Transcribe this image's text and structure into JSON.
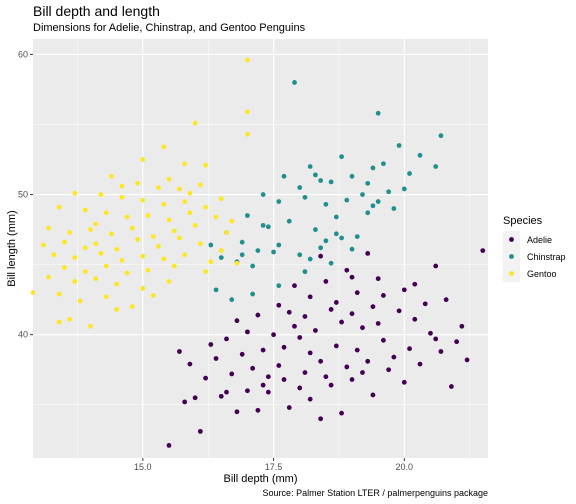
{
  "title": "Bill depth and length",
  "subtitle": "Dimensions for Adelie, Chinstrap, and Gentoo Penguins",
  "caption": "Source: Palmer Station LTER / palmerpenguins package",
  "chart_data": {
    "type": "scatter",
    "title": "Bill depth and length",
    "subtitle": "Dimensions for Adelie, Chinstrap, and Gentoo Penguins",
    "xlabel": "Bill depth (mm)",
    "ylabel": "Bill length (mm)",
    "xlim": [
      12.9,
      21.6
    ],
    "ylim": [
      31.2,
      61.1
    ],
    "x_ticks": [
      15.0,
      17.5,
      20.0
    ],
    "y_ticks": [
      40,
      50,
      60
    ],
    "x_tick_labels": [
      "15.0",
      "17.5",
      "20.0"
    ],
    "y_tick_labels": [
      "40",
      "50",
      "60"
    ],
    "grid": true,
    "legend": {
      "title": "Species",
      "position": "right"
    },
    "series": [
      {
        "name": "Adelie",
        "color": "#440154",
        "points": [
          [
            15.5,
            32.1
          ],
          [
            16.1,
            33.1
          ],
          [
            16.8,
            34.5
          ],
          [
            17.2,
            34.6
          ],
          [
            18.4,
            34.0
          ],
          [
            18.8,
            34.4
          ],
          [
            17.8,
            34.8
          ],
          [
            15.8,
            35.2
          ],
          [
            16.0,
            35.5
          ],
          [
            16.5,
            35.6
          ],
          [
            17.0,
            36.0
          ],
          [
            17.4,
            35.9
          ],
          [
            18.0,
            36.2
          ],
          [
            18.6,
            36.4
          ],
          [
            19.0,
            36.8
          ],
          [
            19.4,
            35.7
          ],
          [
            20.0,
            36.6
          ],
          [
            16.2,
            36.9
          ],
          [
            16.7,
            37.2
          ],
          [
            17.1,
            37.6
          ],
          [
            17.6,
            37.8
          ],
          [
            18.1,
            37.3
          ],
          [
            18.5,
            37.0
          ],
          [
            18.9,
            37.7
          ],
          [
            19.3,
            38.1
          ],
          [
            19.7,
            37.5
          ],
          [
            20.3,
            37.9
          ],
          [
            20.7,
            38.8
          ],
          [
            21.2,
            38.2
          ],
          [
            15.9,
            37.9
          ],
          [
            16.4,
            38.3
          ],
          [
            16.9,
            38.6
          ],
          [
            17.3,
            38.9
          ],
          [
            17.7,
            39.1
          ],
          [
            18.2,
            38.7
          ],
          [
            18.7,
            39.2
          ],
          [
            19.1,
            38.9
          ],
          [
            19.6,
            39.6
          ],
          [
            20.1,
            39.0
          ],
          [
            20.6,
            39.7
          ],
          [
            21.0,
            39.5
          ],
          [
            15.7,
            38.8
          ],
          [
            16.3,
            39.3
          ],
          [
            16.6,
            39.7
          ],
          [
            17.0,
            40.2
          ],
          [
            17.5,
            40.0
          ],
          [
            17.9,
            40.6
          ],
          [
            18.3,
            40.3
          ],
          [
            18.8,
            40.9
          ],
          [
            19.2,
            40.5
          ],
          [
            19.5,
            40.8
          ],
          [
            20.2,
            41.1
          ],
          [
            20.5,
            40.1
          ],
          [
            21.1,
            40.6
          ],
          [
            16.8,
            41.0
          ],
          [
            17.2,
            41.4
          ],
          [
            17.8,
            41.6
          ],
          [
            18.1,
            41.3
          ],
          [
            18.6,
            41.8
          ],
          [
            19.0,
            41.5
          ],
          [
            19.4,
            42.0
          ],
          [
            19.9,
            41.7
          ],
          [
            20.4,
            42.2
          ],
          [
            20.8,
            42.5
          ],
          [
            17.6,
            42.1
          ],
          [
            18.2,
            42.7
          ],
          [
            18.7,
            42.3
          ],
          [
            19.1,
            43.0
          ],
          [
            19.6,
            42.8
          ],
          [
            20.0,
            43.2
          ],
          [
            17.9,
            43.5
          ],
          [
            18.5,
            43.8
          ],
          [
            19.0,
            44.1
          ],
          [
            19.5,
            44.0
          ],
          [
            20.6,
            44.9
          ],
          [
            21.5,
            46.0
          ],
          [
            18.4,
            45.6
          ],
          [
            19.3,
            45.8
          ],
          [
            18.9,
            44.6
          ],
          [
            20.2,
            43.6
          ],
          [
            16.6,
            35.9
          ],
          [
            17.4,
            37.0
          ],
          [
            18.0,
            39.8
          ],
          [
            18.4,
            38.1
          ],
          [
            19.8,
            38.4
          ],
          [
            20.9,
            36.3
          ],
          [
            17.3,
            36.4
          ],
          [
            18.2,
            35.4
          ],
          [
            19.2,
            37.3
          ],
          [
            17.7,
            36.8
          ]
        ]
      },
      {
        "name": "Chinstrap",
        "color": "#21908C",
        "points": [
          [
            17.9,
            58.0
          ],
          [
            19.5,
            55.8
          ],
          [
            20.7,
            54.2
          ],
          [
            18.2,
            52.0
          ],
          [
            18.8,
            52.7
          ],
          [
            19.4,
            51.9
          ],
          [
            19.6,
            52.2
          ],
          [
            20.3,
            52.8
          ],
          [
            20.6,
            52.0
          ],
          [
            19.9,
            53.5
          ],
          [
            17.7,
            51.3
          ],
          [
            18.0,
            50.5
          ],
          [
            18.4,
            51.0
          ],
          [
            18.6,
            50.9
          ],
          [
            19.0,
            51.3
          ],
          [
            19.3,
            50.8
          ],
          [
            19.7,
            50.2
          ],
          [
            20.1,
            51.5
          ],
          [
            17.3,
            50.0
          ],
          [
            17.6,
            49.5
          ],
          [
            18.1,
            49.8
          ],
          [
            18.5,
            49.3
          ],
          [
            18.9,
            49.6
          ],
          [
            19.2,
            50.0
          ],
          [
            19.8,
            49.0
          ],
          [
            17.0,
            48.5
          ],
          [
            17.4,
            47.7
          ],
          [
            17.8,
            48.1
          ],
          [
            18.3,
            47.5
          ],
          [
            18.7,
            48.4
          ],
          [
            19.1,
            47.0
          ],
          [
            16.6,
            47.3
          ],
          [
            16.9,
            46.6
          ],
          [
            17.2,
            46.0
          ],
          [
            17.6,
            46.4
          ],
          [
            18.0,
            45.7
          ],
          [
            18.4,
            46.2
          ],
          [
            18.8,
            46.9
          ],
          [
            16.3,
            46.4
          ],
          [
            16.5,
            45.5
          ],
          [
            16.8,
            45.2
          ],
          [
            17.1,
            44.9
          ],
          [
            17.5,
            45.9
          ],
          [
            18.2,
            45.4
          ],
          [
            18.6,
            45.1
          ],
          [
            16.4,
            43.2
          ],
          [
            16.7,
            42.5
          ],
          [
            17.1,
            42.9
          ],
          [
            17.6,
            43.5
          ],
          [
            18.1,
            44.5
          ],
          [
            18.5,
            46.7
          ],
          [
            19.4,
            49.2
          ],
          [
            19.5,
            49.5
          ],
          [
            20.0,
            50.4
          ],
          [
            16.9,
            45.7
          ],
          [
            17.3,
            47.8
          ],
          [
            18.7,
            47.2
          ],
          [
            19.0,
            46.1
          ],
          [
            19.3,
            48.7
          ],
          [
            18.3,
            51.4
          ]
        ]
      },
      {
        "name": "Gentoo",
        "color": "#FDE725",
        "points": [
          [
            17.0,
            59.6
          ],
          [
            17.0,
            55.9
          ],
          [
            17.0,
            54.3
          ],
          [
            16.0,
            55.1
          ],
          [
            15.4,
            53.4
          ],
          [
            15.0,
            52.5
          ],
          [
            15.8,
            52.2
          ],
          [
            16.2,
            52.1
          ],
          [
            14.4,
            51.3
          ],
          [
            14.9,
            50.8
          ],
          [
            15.3,
            50.5
          ],
          [
            15.7,
            50.4
          ],
          [
            16.1,
            50.7
          ],
          [
            13.7,
            50.1
          ],
          [
            14.2,
            50.0
          ],
          [
            14.6,
            49.8
          ],
          [
            15.0,
            49.6
          ],
          [
            15.4,
            49.3
          ],
          [
            15.8,
            49.5
          ],
          [
            16.2,
            49.1
          ],
          [
            16.5,
            49.7
          ],
          [
            13.4,
            49.1
          ],
          [
            13.9,
            48.9
          ],
          [
            14.3,
            48.7
          ],
          [
            14.7,
            48.4
          ],
          [
            15.1,
            48.5
          ],
          [
            15.5,
            48.2
          ],
          [
            15.9,
            48.7
          ],
          [
            16.4,
            48.4
          ],
          [
            16.7,
            48.1
          ],
          [
            13.2,
            47.6
          ],
          [
            13.6,
            47.3
          ],
          [
            14.0,
            47.5
          ],
          [
            14.4,
            47.2
          ],
          [
            14.8,
            47.6
          ],
          [
            15.2,
            47.0
          ],
          [
            15.6,
            47.4
          ],
          [
            16.0,
            47.8
          ],
          [
            16.6,
            47.3
          ],
          [
            13.1,
            46.4
          ],
          [
            13.5,
            46.6
          ],
          [
            13.9,
            46.2
          ],
          [
            14.1,
            46.5
          ],
          [
            14.5,
            46.1
          ],
          [
            14.9,
            46.8
          ],
          [
            15.3,
            46.3
          ],
          [
            15.7,
            46.9
          ],
          [
            16.1,
            46.5
          ],
          [
            13.3,
            45.7
          ],
          [
            13.7,
            45.5
          ],
          [
            14.2,
            45.8
          ],
          [
            14.6,
            45.3
          ],
          [
            15.0,
            45.6
          ],
          [
            15.4,
            45.4
          ],
          [
            15.8,
            45.7
          ],
          [
            16.3,
            45.2
          ],
          [
            16.8,
            45.1
          ],
          [
            13.5,
            44.8
          ],
          [
            13.9,
            44.5
          ],
          [
            14.3,
            44.9
          ],
          [
            14.7,
            44.4
          ],
          [
            15.1,
            44.6
          ],
          [
            15.6,
            44.9
          ],
          [
            16.2,
            44.5
          ],
          [
            13.2,
            44.1
          ],
          [
            13.7,
            43.8
          ],
          [
            14.1,
            44.0
          ],
          [
            14.5,
            43.6
          ],
          [
            15.0,
            43.3
          ],
          [
            15.5,
            43.8
          ],
          [
            12.9,
            43.0
          ],
          [
            13.4,
            42.9
          ],
          [
            13.8,
            42.4
          ],
          [
            14.3,
            42.7
          ],
          [
            14.8,
            42.0
          ],
          [
            13.6,
            41.1
          ],
          [
            14.0,
            40.6
          ],
          [
            13.4,
            40.9
          ],
          [
            14.5,
            41.8
          ],
          [
            15.2,
            42.8
          ],
          [
            16.5,
            46.0
          ],
          [
            15.9,
            50.1
          ],
          [
            14.6,
            50.6
          ],
          [
            14.1,
            47.9
          ],
          [
            15.5,
            51.1
          ]
        ]
      }
    ]
  }
}
